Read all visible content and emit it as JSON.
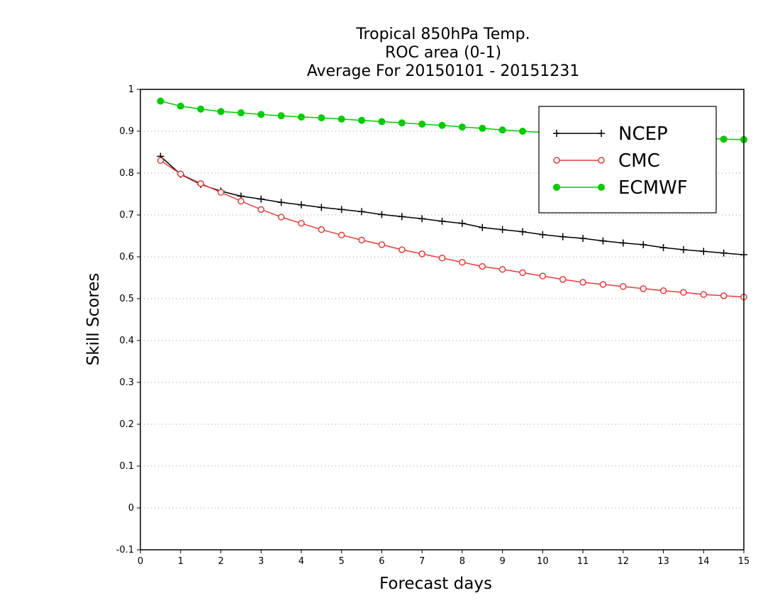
{
  "chart_data": {
    "type": "line",
    "title_lines": [
      "Tropical 850hPa Temp.",
      "ROC area (0-1)",
      "Average For 20150101 - 20151231"
    ],
    "xlabel": "Forecast days",
    "ylabel": "Skill Scores",
    "xlim": [
      0,
      15
    ],
    "ylim": [
      -0.1,
      1
    ],
    "x_ticks": [
      0,
      1,
      2,
      3,
      4,
      5,
      6,
      7,
      8,
      9,
      10,
      11,
      12,
      13,
      14,
      15
    ],
    "x_tick_labels": [
      "0",
      "1",
      "2",
      "3",
      "4",
      "5",
      "6",
      "7",
      "8",
      "9",
      "10",
      "11",
      "12",
      "13",
      "14",
      "15"
    ],
    "y_ticks": [
      -0.1,
      0,
      0.1,
      0.2,
      0.3,
      0.4,
      0.5,
      0.6,
      0.7,
      0.8,
      0.9,
      1
    ],
    "y_tick_labels": [
      "-0.1",
      "0",
      "0.1",
      "0.2",
      "0.3",
      "0.4",
      "0.5",
      "0.6",
      "0.7",
      "0.8",
      "0.9",
      "1"
    ],
    "grid": "horizontal dotted",
    "legend_position": "top-right",
    "x": [
      0.5,
      1,
      1.5,
      2,
      2.5,
      3,
      3.5,
      4,
      4.5,
      5,
      5.5,
      6,
      6.5,
      7,
      7.5,
      8,
      8.5,
      9,
      9.5,
      10,
      10.5,
      11,
      11.5,
      12,
      12.5,
      13,
      13.5,
      14,
      14.5,
      15
    ],
    "series": [
      {
        "name": "NCEP",
        "color": "#000000",
        "marker": "plus",
        "values": [
          0.84,
          0.797,
          0.773,
          0.757,
          0.745,
          0.738,
          0.73,
          0.724,
          0.718,
          0.713,
          0.708,
          0.701,
          0.696,
          0.691,
          0.685,
          0.68,
          0.67,
          0.665,
          0.66,
          0.653,
          0.648,
          0.644,
          0.638,
          0.633,
          0.629,
          0.622,
          0.617,
          0.613,
          0.609,
          0.605
        ]
      },
      {
        "name": "CMC",
        "color": "#e83a3a",
        "marker": "open-circle",
        "values": [
          0.83,
          0.798,
          0.775,
          0.754,
          0.733,
          0.713,
          0.695,
          0.68,
          0.665,
          0.652,
          0.64,
          0.629,
          0.617,
          0.607,
          0.597,
          0.587,
          0.577,
          0.57,
          0.562,
          0.554,
          0.546,
          0.539,
          0.534,
          0.529,
          0.524,
          0.519,
          0.515,
          0.51,
          0.507,
          0.504
        ]
      },
      {
        "name": "ECMWF",
        "color": "#00cc00",
        "marker": "filled-circle",
        "values": [
          0.972,
          0.96,
          0.953,
          0.947,
          0.944,
          0.94,
          0.937,
          0.934,
          0.932,
          0.929,
          0.926,
          0.923,
          0.92,
          0.917,
          0.914,
          0.91,
          0.907,
          0.903,
          0.9,
          0.897,
          0.895,
          0.893,
          0.891,
          0.889,
          0.887,
          0.886,
          0.884,
          0.883,
          0.881,
          0.88
        ]
      }
    ]
  }
}
